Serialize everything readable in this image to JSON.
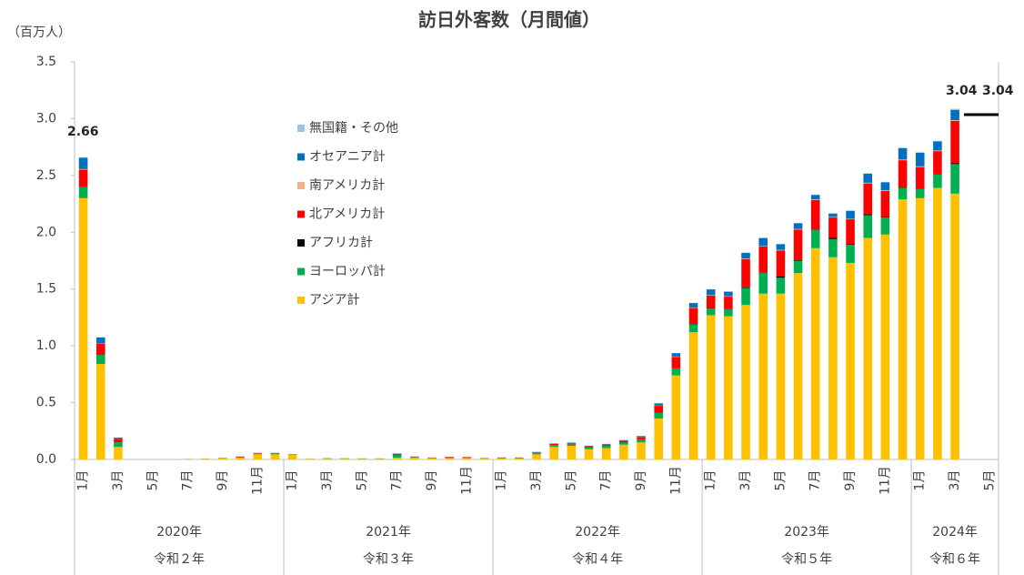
{
  "chart_data": {
    "type": "stacked_bar",
    "title": "訪日外客数（月間値）",
    "y_label": "（百万人）",
    "categories": [
      "1月",
      null,
      "3月",
      null,
      "5月",
      null,
      "7月",
      null,
      "9月",
      null,
      "11月",
      null,
      "1月",
      null,
      "3月",
      null,
      "5月",
      null,
      "7月",
      null,
      "9月",
      null,
      "11月",
      null,
      "1月",
      null,
      "3月",
      null,
      "5月",
      null,
      "7月",
      null,
      "9月",
      null,
      "11月",
      null,
      "1月",
      null,
      "3月",
      null,
      "5月",
      null,
      "7月",
      null,
      "9月",
      null,
      "11月",
      null,
      "1月",
      null,
      "3月",
      null,
      "5月"
    ],
    "years": [
      "2020年",
      "2021年",
      "2022年",
      "2023年",
      "2024年"
    ],
    "eras": [
      "令和２年",
      "令和３年",
      "令和４年",
      "令和５年",
      "令和６年"
    ],
    "annotations": [
      "2.66",
      "3.04",
      "3.04"
    ],
    "ylim": [
      0,
      3.5
    ],
    "yticks": [
      {
        "value": 0,
        "label": "0.0"
      },
      0.5,
      {
        "value": 1,
        "label": "1.0"
      },
      1.5,
      {
        "value": 2,
        "label": "2.0"
      },
      2.5,
      {
        "value": 3,
        "label": "3.0"
      },
      3.5
    ],
    "grid": false,
    "series": [
      {
        "name": "アジア計",
        "color": "#ffc000",
        "values": [
          2.3,
          0.84,
          0.11,
          0.001,
          0.001,
          0.001,
          0.002,
          0.005,
          0.008,
          0.015,
          0.045,
          0.045,
          0.04,
          0.004,
          0.006,
          0.006,
          0.005,
          0.005,
          0.015,
          0.015,
          0.01,
          0.012,
          0.012,
          0.007,
          0.01,
          0.01,
          0.045,
          0.11,
          0.12,
          0.09,
          0.1,
          0.13,
          0.15,
          0.36,
          0.74,
          1.12,
          1.27,
          1.26,
          1.36,
          1.46,
          1.46,
          1.64,
          1.86,
          1.78,
          1.73,
          1.95,
          1.98,
          2.29,
          2.3,
          2.39,
          2.34,
          null,
          null
        ]
      },
      {
        "name": "ヨーロッパ計",
        "color": "#00b050",
        "values": [
          0.1,
          0.08,
          0.04,
          0,
          0,
          0,
          0.001,
          0.001,
          0.002,
          0.004,
          0.005,
          0.008,
          0.003,
          0.001,
          0.003,
          0.002,
          0.002,
          0.002,
          0.025,
          0.006,
          0.004,
          0.004,
          0.004,
          0.002,
          0.002,
          0.002,
          0.008,
          0.015,
          0.012,
          0.015,
          0.02,
          0.02,
          0.025,
          0.05,
          0.06,
          0.07,
          0.06,
          0.06,
          0.15,
          0.18,
          0.14,
          0.11,
          0.16,
          0.16,
          0.16,
          0.2,
          0.15,
          0.1,
          0.08,
          0.12,
          0.26,
          null,
          null
        ]
      },
      {
        "name": "アフリカ計",
        "color": "#000000",
        "values": [
          0.002,
          0.001,
          0.001,
          0,
          0,
          0,
          0,
          0,
          0,
          0,
          0.001,
          0.001,
          0,
          0,
          0,
          0,
          0,
          0,
          0.002,
          0.001,
          0,
          0.002,
          0.001,
          0.001,
          0.001,
          0.001,
          0.001,
          0.001,
          0.001,
          0.001,
          0.001,
          0.002,
          0.002,
          0.002,
          0.003,
          0.003,
          0.003,
          0.003,
          0.004,
          0.004,
          0.01,
          0.004,
          0.004,
          0.01,
          0.004,
          0.01,
          0.004,
          0.004,
          0.004,
          0.004,
          0.01,
          null,
          null
        ]
      },
      {
        "name": "北アメリカ計",
        "color": "#ff0000",
        "values": [
          0.15,
          0.1,
          0.03,
          0,
          0,
          0,
          0.001,
          0.001,
          0.002,
          0.006,
          0.004,
          0.003,
          0.002,
          0.001,
          0.002,
          0.002,
          0.002,
          0.002,
          0.008,
          0.003,
          0.003,
          0.004,
          0.004,
          0.002,
          0.003,
          0.003,
          0.008,
          0.01,
          0.01,
          0.01,
          0.01,
          0.012,
          0.02,
          0.06,
          0.1,
          0.14,
          0.11,
          0.11,
          0.25,
          0.23,
          0.23,
          0.27,
          0.26,
          0.18,
          0.22,
          0.27,
          0.23,
          0.24,
          0.19,
          0.2,
          0.37,
          null,
          null
        ]
      },
      {
        "name": "南アメリカ計",
        "color": "#f4b183",
        "values": [
          0.005,
          0.003,
          0.001,
          0,
          0,
          0,
          0,
          0,
          0,
          0,
          0.001,
          0.001,
          0,
          0,
          0,
          0,
          0,
          0,
          0.002,
          0.001,
          0.001,
          0.001,
          0.001,
          0.001,
          0.001,
          0.001,
          0.001,
          0.001,
          0.001,
          0.001,
          0.001,
          0.001,
          0.001,
          0.002,
          0.003,
          0.004,
          0.004,
          0.004,
          0.005,
          0.005,
          0.005,
          0.005,
          0.005,
          0.005,
          0.005,
          0.006,
          0.006,
          0.006,
          0.006,
          0.006,
          0.007,
          null,
          null
        ]
      },
      {
        "name": "オセアニア計",
        "color": "#0070c0",
        "values": [
          0.1,
          0.05,
          0.01,
          0,
          0,
          0,
          0,
          0,
          0.001,
          0.001,
          0.002,
          0.001,
          0.001,
          0,
          0,
          0,
          0,
          0,
          0.002,
          0.001,
          0,
          0.001,
          0.001,
          0,
          0.001,
          0.001,
          0.003,
          0.004,
          0.004,
          0.004,
          0.005,
          0.005,
          0.008,
          0.02,
          0.03,
          0.04,
          0.05,
          0.04,
          0.05,
          0.07,
          0.05,
          0.05,
          0.04,
          0.03,
          0.07,
          0.08,
          0.07,
          0.1,
          0.12,
          0.08,
          0.09,
          null,
          null
        ]
      },
      {
        "name": "無国籍・その他",
        "color": "#9dc3e6",
        "values": [
          0.003,
          0.003,
          0.001,
          0,
          0,
          0,
          0,
          0,
          0,
          0,
          0,
          0,
          0,
          0,
          0,
          0,
          0,
          0,
          0.001,
          0,
          0,
          0,
          0,
          0,
          0,
          0,
          0,
          0,
          0,
          0,
          0,
          0,
          0,
          0.001,
          0.001,
          0.002,
          0.002,
          0.002,
          0.003,
          0.003,
          0.003,
          0.003,
          0.003,
          0.003,
          0.003,
          0.004,
          0.004,
          0.005,
          0.005,
          0.005,
          0.01,
          null,
          null
        ]
      }
    ]
  }
}
